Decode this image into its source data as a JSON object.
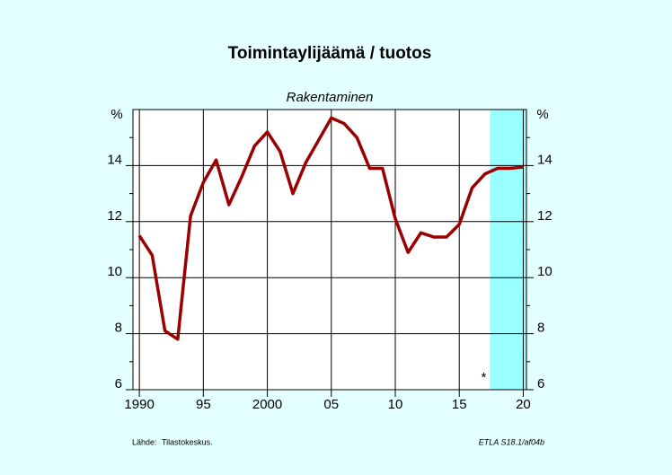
{
  "chart_data": {
    "type": "line",
    "title": "Toimintaylijäämä / tuotos",
    "subtitle": "Rakentaminen",
    "y_unit": "%",
    "source_label": "Lähde:",
    "source": "Tilastokeskus.",
    "code": "ETLA S18.1/af04b",
    "forecast_marker": "*",
    "forecast_start": 2017.4,
    "forecast_color": "#99ffff",
    "x": [
      1990,
      1991,
      1992,
      1993,
      1994,
      1995,
      1996,
      1997,
      1998,
      1999,
      2000,
      2001,
      2002,
      2003,
      2004,
      2005,
      2006,
      2007,
      2008,
      2009,
      2010,
      2011,
      2012,
      2013,
      2014,
      2015,
      2016,
      2017,
      2018,
      2019,
      2020
    ],
    "series": [
      {
        "color": "#9a0000",
        "values": [
          11.5,
          10.8,
          8.1,
          7.8,
          12.2,
          13.4,
          14.2,
          12.6,
          13.6,
          14.7,
          15.2,
          14.5,
          13.0,
          14.1,
          14.9,
          15.7,
          15.5,
          15.0,
          13.9,
          13.9,
          12.1,
          10.9,
          11.6,
          11.45,
          11.45,
          11.9,
          13.2,
          13.7,
          13.9,
          13.9,
          13.95
        ]
      }
    ],
    "xlim": [
      1989.5,
      2020.25
    ],
    "xticks": [
      1990,
      {
        "value": 1995,
        "label": "95"
      },
      2000,
      {
        "value": 2005,
        "label": "05"
      },
      {
        "value": 2010,
        "label": "10"
      },
      {
        "value": 2015,
        "label": "15"
      },
      {
        "value": 2020,
        "label": "20"
      }
    ],
    "ylim": [
      6,
      16
    ],
    "yticks": [
      6,
      8,
      10,
      12,
      14
    ],
    "yminorticks": [
      7,
      9,
      11,
      13,
      15
    ],
    "grid": true
  }
}
